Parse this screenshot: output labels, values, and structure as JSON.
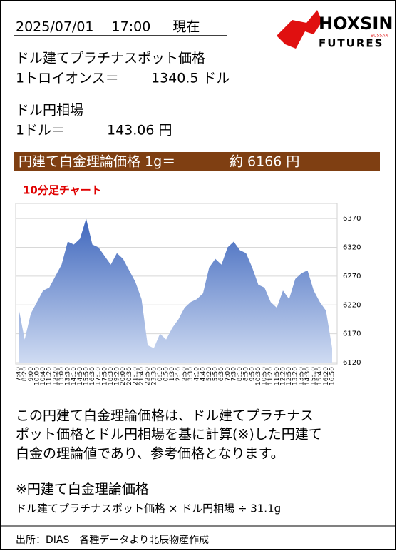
{
  "header": {
    "datetime": "2025/07/01　 17:00 　 現在"
  },
  "logo": {
    "brand": "HOXSIN",
    "sub": "BUSSAN",
    "tagline": "FUTURES"
  },
  "platinum": {
    "label": "ドル建てプラチナスポット価格",
    "unit": "1トロイオンス＝",
    "value": "1340.5 ドル"
  },
  "usdjpy": {
    "label": "ドル円相場",
    "unit": "1ドル＝",
    "value": "143.06 円"
  },
  "banner": {
    "label": "円建て白金理論価格 1g＝",
    "value": "約 6166 円"
  },
  "chart_data": {
    "type": "area",
    "title": "10分足チャート",
    "categories": [
      "7:40",
      "8:20",
      "9:00",
      "10:00",
      "10:40",
      "11:20",
      "12:20",
      "13:00",
      "13:30",
      "14:10",
      "14:50",
      "15:50",
      "16:30",
      "17:10",
      "17:50",
      "18:30",
      "19:20",
      "20:00",
      "20:30",
      "21:10",
      "21:40",
      "22:50",
      "23:30",
      "0:10",
      "0:50",
      "1:30",
      "2:10",
      "2:50",
      "3:30",
      "4:10",
      "4:40",
      "5:20",
      "5:50",
      "6:30",
      "7:00",
      "7:30",
      "8:10",
      "8:50",
      "9:50",
      "10:30",
      "10:50",
      "11:20",
      "11:50",
      "12:20",
      "12:50",
      "13:20",
      "13:50",
      "14:30",
      "15:10",
      "15:40",
      "16:20",
      "16:50"
    ],
    "values": [
      6215,
      6160,
      6205,
      6225,
      6245,
      6250,
      6270,
      6290,
      6330,
      6325,
      6335,
      6370,
      6325,
      6320,
      6305,
      6290,
      6310,
      6300,
      6280,
      6260,
      6230,
      6150,
      6145,
      6170,
      6160,
      6180,
      6195,
      6215,
      6225,
      6230,
      6240,
      6285,
      6300,
      6290,
      6320,
      6330,
      6315,
      6310,
      6285,
      6255,
      6250,
      6225,
      6215,
      6245,
      6230,
      6265,
      6275,
      6280,
      6245,
      6225,
      6210,
      6145
    ],
    "color": "#4a72c4",
    "ylim": [
      6120,
      6390
    ],
    "yticks": [
      6120,
      6170,
      6220,
      6270,
      6320,
      6370
    ],
    "grid": true
  },
  "description": {
    "lines": [
      "この円建て白金理論価格は、ドル建てプラチナス",
      "ポット価格とドル円相場を基に計算(※)した円建て",
      "白金の理論値であり、参考価格となります。"
    ]
  },
  "formula": {
    "title": "※円建て白金理論価格",
    "text": "ドル建てプラチナスポット価格 × ドル円相場 ÷ 31.1g"
  },
  "footer": {
    "source": "出所：DIAS　各種データより北辰物産作成"
  }
}
